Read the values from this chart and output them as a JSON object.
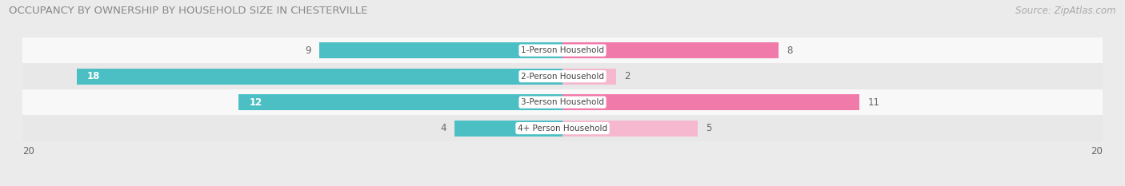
{
  "title": "OCCUPANCY BY OWNERSHIP BY HOUSEHOLD SIZE IN CHESTERVILLE",
  "source": "Source: ZipAtlas.com",
  "categories": [
    "1-Person Household",
    "2-Person Household",
    "3-Person Household",
    "4+ Person Household"
  ],
  "owner_values": [
    9,
    18,
    12,
    4
  ],
  "renter_values": [
    8,
    2,
    11,
    5
  ],
  "owner_color": "#4bbfc4",
  "renter_colors": [
    "#f07aaa",
    "#f5b8cf",
    "#f07aaa",
    "#f5b8cf"
  ],
  "owner_light_color": "#a8dde0",
  "bar_height": 0.62,
  "xlim": 20,
  "title_fontsize": 9.5,
  "source_fontsize": 8.5,
  "label_fontsize": 8.5,
  "category_fontsize": 7.5,
  "legend_fontsize": 8.5,
  "background_color": "#ebebeb",
  "row_colors": [
    "#f8f8f8",
    "#e8e8e8",
    "#f8f8f8",
    "#e8e8e8"
  ]
}
